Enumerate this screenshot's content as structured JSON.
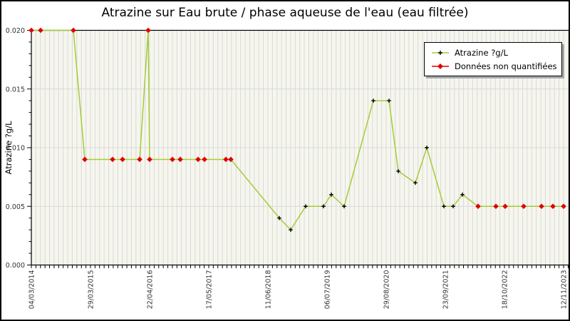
{
  "title": "Atrazine sur Eau brute / phase aqueuse de l'eau (eau filtrée)",
  "legend": {
    "series_quantified": "Atrazine ?g/L",
    "series_unquantified": "Données non quantifiées"
  },
  "y_axis": {
    "label": "Atrazine ?g/L",
    "tick_labels": [
      "0.000",
      "0.005",
      "0.010",
      "0.015",
      "0.020"
    ],
    "tick_values": [
      0,
      0.005,
      0.01,
      0.015,
      0.02
    ]
  },
  "x_axis": {
    "tick_labels": [
      "04/03/2014",
      "29/03/2015",
      "22/04/2016",
      "17/05/2017",
      "11/06/2018",
      "06/07/2019",
      "29/08/2020",
      "23/09/2021",
      "18/10/2022",
      "12/11/2023"
    ]
  },
  "colors": {
    "line": "#a3cc38",
    "unquantified_marker": "#e00000",
    "quantified_marker": "#000000",
    "plot_background": "#f6f6ee",
    "gridline": "#d9d9d9",
    "axis": "#000000",
    "tick_text": "#333333"
  },
  "chart_data": {
    "type": "line",
    "title": "Atrazine sur Eau brute / phase aqueuse de l'eau (eau filtrée)",
    "xlabel": "",
    "ylabel": "Atrazine ?g/L",
    "ylim": [
      0,
      0.02
    ],
    "grid": "dense vertical sample gridlines + horizontal lines at major y ticks",
    "legend_position": "upper right",
    "x_tick_labels": [
      "04/03/2014",
      "29/03/2015",
      "22/04/2016",
      "17/05/2017",
      "11/06/2018",
      "06/07/2019",
      "29/08/2020",
      "23/09/2021",
      "18/10/2022",
      "12/11/2023"
    ],
    "series_names": [
      "Atrazine ?g/L",
      "Données non quantifiées"
    ],
    "point_format": "[x_px_on_800px_axis, value_ug_per_L, quantified_1_or_0]",
    "points": [
      [
        42,
        0.02,
        0
      ],
      [
        55,
        0.02,
        0
      ],
      [
        101,
        0.02,
        0
      ],
      [
        117,
        0.009,
        0
      ],
      [
        156,
        0.009,
        0
      ],
      [
        170,
        0.009,
        0
      ],
      [
        194,
        0.009,
        0
      ],
      [
        206,
        0.02,
        0
      ],
      [
        208,
        0.009,
        0
      ],
      [
        240,
        0.009,
        0
      ],
      [
        251,
        0.009,
        0
      ],
      [
        276,
        0.009,
        0
      ],
      [
        285,
        0.009,
        0
      ],
      [
        315,
        0.009,
        0
      ],
      [
        322,
        0.009,
        0
      ],
      [
        390,
        0.004,
        1
      ],
      [
        406,
        0.003,
        1
      ],
      [
        427,
        0.005,
        1
      ],
      [
        452,
        0.005,
        1
      ],
      [
        463,
        0.006,
        1
      ],
      [
        481,
        0.005,
        1
      ],
      [
        522,
        0.014,
        1
      ],
      [
        544,
        0.014,
        1
      ],
      [
        557,
        0.008,
        1
      ],
      [
        581,
        0.007,
        1
      ],
      [
        597,
        0.01,
        1
      ],
      [
        621,
        0.005,
        1
      ],
      [
        634,
        0.005,
        1
      ],
      [
        647,
        0.006,
        1
      ],
      [
        669,
        0.005,
        0
      ],
      [
        694,
        0.005,
        0
      ],
      [
        707,
        0.005,
        0
      ],
      [
        733,
        0.005,
        0
      ],
      [
        758,
        0.005,
        0
      ],
      [
        774,
        0.005,
        0
      ],
      [
        789,
        0.005,
        0
      ]
    ]
  }
}
